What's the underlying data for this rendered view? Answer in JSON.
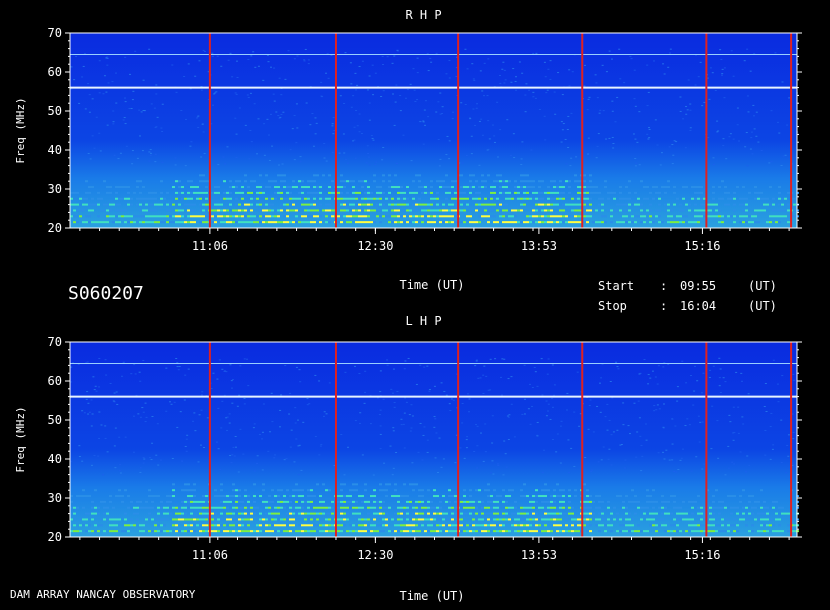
{
  "footer_left": "DAM ARRAY   NANCAY OBSERVATORY",
  "spectrogram_id": "S060207",
  "start_label": "Start",
  "stop_label": "Stop",
  "colon": ":",
  "start_time": "09:55",
  "stop_time": "16:04",
  "time_unit": "(UT)",
  "colors": {
    "background": "#000000",
    "spectrum_base": "#0a2fd8",
    "marker_line": "#e02020",
    "band_bright": "#ffff40",
    "band_mid": "#40e0c0"
  },
  "chart_data": [
    {
      "type": "heatmap",
      "title": "R H P",
      "xlabel": "Time (UT)",
      "ylabel": "Freq (MHz)",
      "xlim": [
        "09:55",
        "16:04"
      ],
      "ylim": [
        20,
        70
      ],
      "x_ticks": [
        "11:06",
        "12:30",
        "13:53",
        "15:16"
      ],
      "y_ticks": [
        20,
        30,
        40,
        50,
        60,
        70
      ],
      "interference_lines_mhz": [
        56,
        64.5
      ],
      "marker_times": [
        "11:06",
        "12:10",
        "13:12",
        "14:15",
        "15:18",
        "16:01"
      ]
    },
    {
      "type": "heatmap",
      "title": "L H P",
      "xlabel": "Time (UT)",
      "ylabel": "Freq (MHz)",
      "xlim": [
        "09:55",
        "16:04"
      ],
      "ylim": [
        20,
        70
      ],
      "x_ticks": [
        "11:06",
        "12:30",
        "13:53",
        "15:16"
      ],
      "y_ticks": [
        20,
        30,
        40,
        50,
        60,
        70
      ],
      "interference_lines_mhz": [
        56,
        64.5
      ],
      "marker_times": [
        "11:06",
        "12:10",
        "13:12",
        "14:15",
        "15:18",
        "16:01"
      ]
    }
  ]
}
